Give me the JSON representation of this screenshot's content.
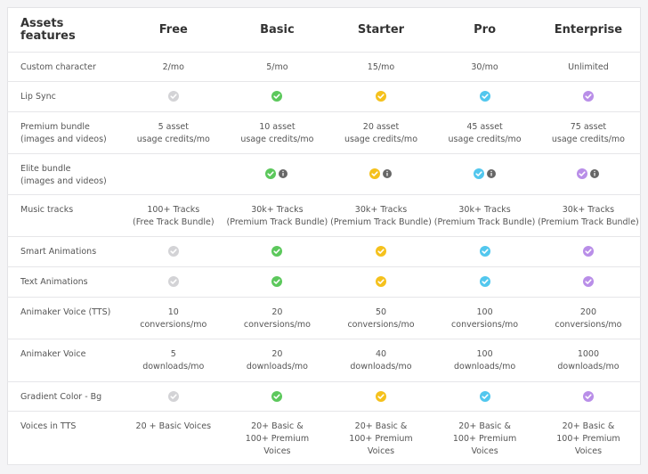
{
  "table": {
    "header": [
      "Assets features",
      "Free",
      "Basic",
      "Starter",
      "Pro",
      "Enterprise"
    ],
    "rows": [
      [
        "Custom character",
        "2/mo",
        "5/mo",
        "15/mo",
        "30/mo",
        "Unlimited"
      ],
      [
        "Lip Sync",
        null,
        null,
        null,
        null,
        null
      ],
      [
        "Premium bundle\n(images and videos)",
        "5 asset\nusage credits/mo",
        "10 asset\nusage credits/mo",
        "20 asset\nusage credits/mo",
        "45 asset\nusage credits/mo",
        "75 asset\nusage credits/mo"
      ],
      [
        "Elite bundle\n(images and videos)",
        null,
        null,
        null,
        null,
        null
      ],
      [
        "Music tracks",
        "100+ Tracks\n(Free Track Bundle)",
        "30k+ Tracks\n(Premium Track Bundle)",
        "30k+ Tracks\n(Premium Track Bundle)",
        "30k+ Tracks\n(Premium Track Bundle)",
        "30k+ Tracks\n(Premium Track Bundle)"
      ],
      [
        "Smart Animations",
        null,
        null,
        null,
        null,
        null
      ],
      [
        "Text Animations",
        null,
        null,
        null,
        null,
        null
      ],
      [
        "Animaker Voice (TTS)",
        "10\nconversions/mo",
        "20\nconversions/mo",
        "50\nconversions/mo",
        "100\nconversions/mo",
        "200\nconversions/mo"
      ],
      [
        "Animaker Voice",
        "5\ndownloads/mo",
        "20\ndownloads/mo",
        "40\ndownloads/mo",
        "100\ndownloads/mo",
        "1000\ndownloads/mo"
      ],
      [
        "Gradient Color - Bg",
        null,
        null,
        null,
        null,
        null
      ],
      [
        "Voices in TTS",
        "20 + Basic Voices",
        "20+ Basic &\n100+ Premium\nVoices",
        "20+ Basic &\n100+ Premium\nVoices",
        "20+ Basic &\n100+ Premium\nVoices",
        "20+ Basic &\n100+ Premium\nVoices"
      ]
    ]
  }
}
